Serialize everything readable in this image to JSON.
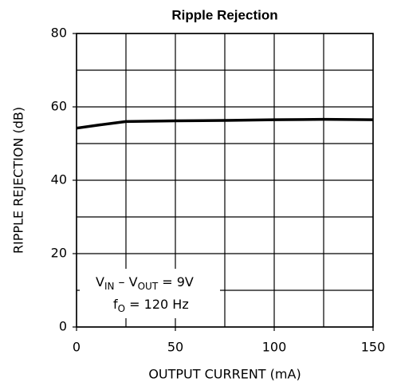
{
  "chart_data": {
    "type": "line",
    "title": "Ripple Rejection",
    "x_label": "OUTPUT CURRENT (mA)",
    "y_label": "RIPPLE REJECTION (dB)",
    "x": [
      0,
      12,
      25,
      50,
      75,
      100,
      125,
      150
    ],
    "series": [
      {
        "name": "Ripple rejection",
        "color": "#000000",
        "values": [
          54.2,
          55.1,
          56,
          56.2,
          56.3,
          56.5,
          56.6,
          56.5
        ]
      }
    ],
    "xlim": [
      0,
      150
    ],
    "xticks": [
      0,
      50,
      100,
      150
    ],
    "xgrid": [
      0,
      25,
      50,
      75,
      100,
      125,
      150
    ],
    "ylim": [
      0,
      80
    ],
    "yticks": [
      0,
      20,
      40,
      60,
      80
    ],
    "ygrid": [
      0,
      10,
      20,
      30,
      40,
      50,
      60,
      70,
      80
    ],
    "grid": true,
    "annotation": [
      [
        {
          "text": "V"
        },
        {
          "sub": "IN"
        },
        {
          "text": " – V"
        },
        {
          "sub": "OUT"
        },
        {
          "text": " = 9V"
        }
      ],
      [
        {
          "text": "f"
        },
        {
          "sub": "O"
        },
        {
          "text": " = 120 Hz"
        }
      ]
    ]
  }
}
